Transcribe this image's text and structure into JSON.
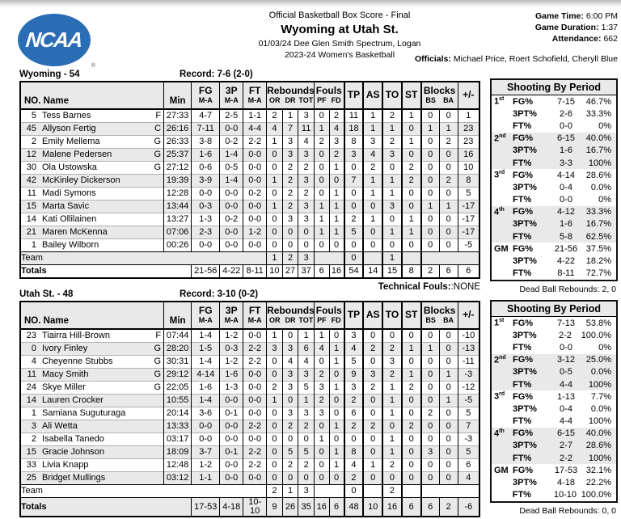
{
  "colors": {
    "ncaa_blue": "#2a6db5",
    "row_shade": "#e9e9e9"
  },
  "header": {
    "logo_text": "NCAA",
    "logo_reg": "®",
    "report_type": "Official Basketball Box Score - Final",
    "title": "Wyoming at Utah St.",
    "venue": "01/03/24 Dee Glen Smith Spectrum, Logan",
    "season": "2023-24 Women's Basketball",
    "game_time_label": "Game Time:",
    "game_time": "6:00 PM",
    "game_duration_label": "Game Duration:",
    "game_duration": "1:37",
    "attendance_label": "Attendance:",
    "attendance": "662",
    "officials_label": "Officials:",
    "officials": "Michael Price, Roert Schofield, Cheryll Blue"
  },
  "columns": {
    "name": "NO. Name",
    "min": "Min",
    "fg": "FG",
    "p3": "3P",
    "ft": "FT",
    "ma": "M-A",
    "reb": "Rebounds",
    "or": "OR",
    "dr": "DR",
    "tot": "TOT",
    "fouls": "Fouls",
    "pf": "PF",
    "fd": "FD",
    "tp": "TP",
    "as": "AS",
    "to": "TO",
    "st": "ST",
    "blocks": "Blocks",
    "bs": "BS",
    "ba": "BA",
    "pm": "+/-"
  },
  "labels": {
    "team_row": "Team",
    "totals_row": "Totals",
    "technical_fouls_label": "Technical Fouls:",
    "technical_fouls_value": ":NONE",
    "shooting_title": "Shooting By Period"
  },
  "teams": [
    {
      "title": "Wyoming - 54",
      "record": "Record: 7-6 (2-0)",
      "players": [
        {
          "no": "5",
          "name": "Tess Barnes",
          "pos": "F",
          "min": "27:33",
          "fg": "4-7",
          "p3": "2-5",
          "ft": "1-1",
          "or": "2",
          "dr": "1",
          "tot": "3",
          "pf": "0",
          "fd": "2",
          "tp": "11",
          "as": "1",
          "to": "2",
          "st": "1",
          "bs": "0",
          "ba": "0",
          "pm": "1"
        },
        {
          "no": "45",
          "name": "Allyson Fertig",
          "pos": "C",
          "min": "26:16",
          "fg": "7-11",
          "p3": "0-0",
          "ft": "4-4",
          "or": "4",
          "dr": "7",
          "tot": "11",
          "pf": "1",
          "fd": "4",
          "tp": "18",
          "as": "1",
          "to": "1",
          "st": "0",
          "bs": "1",
          "ba": "1",
          "pm": "23"
        },
        {
          "no": "2",
          "name": "Emily Mellema",
          "pos": "G",
          "min": "26:33",
          "fg": "3-8",
          "p3": "0-2",
          "ft": "2-2",
          "or": "1",
          "dr": "3",
          "tot": "4",
          "pf": "2",
          "fd": "3",
          "tp": "8",
          "as": "3",
          "to": "2",
          "st": "1",
          "bs": "0",
          "ba": "2",
          "pm": "23"
        },
        {
          "no": "12",
          "name": "Malene Pedersen",
          "pos": "G",
          "min": "25:37",
          "fg": "1-6",
          "p3": "1-4",
          "ft": "0-0",
          "or": "0",
          "dr": "3",
          "tot": "3",
          "pf": "0",
          "fd": "2",
          "tp": "3",
          "as": "4",
          "to": "3",
          "st": "0",
          "bs": "0",
          "ba": "0",
          "pm": "16"
        },
        {
          "no": "30",
          "name": "Ola Ustowska",
          "pos": "G",
          "min": "27:12",
          "fg": "0-6",
          "p3": "0-5",
          "ft": "0-0",
          "or": "0",
          "dr": "2",
          "tot": "2",
          "pf": "0",
          "fd": "1",
          "tp": "0",
          "as": "2",
          "to": "0",
          "st": "2",
          "bs": "0",
          "ba": "0",
          "pm": "10"
        },
        {
          "no": "42",
          "name": "McKinley Dickerson",
          "pos": "",
          "min": "19:39",
          "fg": "3-9",
          "p3": "1-4",
          "ft": "0-0",
          "or": "1",
          "dr": "2",
          "tot": "3",
          "pf": "0",
          "fd": "0",
          "tp": "7",
          "as": "1",
          "to": "1",
          "st": "2",
          "bs": "0",
          "ba": "2",
          "pm": "8"
        },
        {
          "no": "11",
          "name": "Madi Symons",
          "pos": "",
          "min": "12:28",
          "fg": "0-0",
          "p3": "0-0",
          "ft": "0-2",
          "or": "0",
          "dr": "2",
          "tot": "2",
          "pf": "0",
          "fd": "1",
          "tp": "0",
          "as": "1",
          "to": "1",
          "st": "0",
          "bs": "0",
          "ba": "0",
          "pm": "5"
        },
        {
          "no": "15",
          "name": "Marta Savic",
          "pos": "",
          "min": "13:44",
          "fg": "0-3",
          "p3": "0-0",
          "ft": "0-0",
          "or": "1",
          "dr": "2",
          "tot": "3",
          "pf": "1",
          "fd": "1",
          "tp": "0",
          "as": "0",
          "to": "3",
          "st": "0",
          "bs": "1",
          "ba": "1",
          "pm": "-17"
        },
        {
          "no": "14",
          "name": "Kati Ollilainen",
          "pos": "",
          "min": "13:27",
          "fg": "1-3",
          "p3": "0-2",
          "ft": "0-0",
          "or": "0",
          "dr": "3",
          "tot": "3",
          "pf": "1",
          "fd": "1",
          "tp": "2",
          "as": "1",
          "to": "0",
          "st": "1",
          "bs": "0",
          "ba": "0",
          "pm": "-17"
        },
        {
          "no": "21",
          "name": "Maren McKenna",
          "pos": "",
          "min": "07:06",
          "fg": "2-3",
          "p3": "0-0",
          "ft": "1-2",
          "or": "0",
          "dr": "0",
          "tot": "0",
          "pf": "1",
          "fd": "1",
          "tp": "5",
          "as": "0",
          "to": "1",
          "st": "1",
          "bs": "0",
          "ba": "0",
          "pm": "-17"
        },
        {
          "no": "1",
          "name": "Bailey Wilborn",
          "pos": "",
          "min": "00:26",
          "fg": "0-0",
          "p3": "0-0",
          "ft": "0-0",
          "or": "0",
          "dr": "0",
          "tot": "0",
          "pf": "0",
          "fd": "0",
          "tp": "0",
          "as": "0",
          "to": "0",
          "st": "0",
          "bs": "0",
          "ba": "0",
          "pm": "-5"
        }
      ],
      "team_row": {
        "or": "1",
        "dr": "2",
        "tot": "3",
        "tp": "0",
        "to": "1"
      },
      "totals": {
        "fg": "21-56",
        "p3": "4-22",
        "ft": "8-11",
        "or": "10",
        "dr": "27",
        "tot": "37",
        "pf": "6",
        "fd": "16",
        "tp": "54",
        "as": "14",
        "to": "15",
        "st": "8",
        "bs": "2",
        "ba": "6",
        "pm": "6"
      },
      "shooting": [
        {
          "num": "1",
          "sup": "st",
          "rows": [
            [
              "FG%",
              "7-15",
              "46.7%"
            ],
            [
              "3PT%",
              "2-6",
              "33.3%"
            ],
            [
              "FT%",
              "0-0",
              "0%"
            ]
          ]
        },
        {
          "num": "2",
          "sup": "nd",
          "rows": [
            [
              "FG%",
              "6-15",
              "40.0%"
            ],
            [
              "3PT%",
              "1-6",
              "16.7%"
            ],
            [
              "FT%",
              "3-3",
              "100%"
            ]
          ]
        },
        {
          "num": "3",
          "sup": "rd",
          "rows": [
            [
              "FG%",
              "4-14",
              "28.6%"
            ],
            [
              "3PT%",
              "0-4",
              "0.0%"
            ],
            [
              "FT%",
              "0-0",
              "0%"
            ]
          ]
        },
        {
          "num": "4",
          "sup": "th",
          "rows": [
            [
              "FG%",
              "4-12",
              "33.3%"
            ],
            [
              "3PT%",
              "1-6",
              "16.7%"
            ],
            [
              "FT%",
              "5-8",
              "62.5%"
            ]
          ]
        },
        {
          "num": "GM",
          "sup": "",
          "rows": [
            [
              "FG%",
              "21-56",
              "37.5%"
            ],
            [
              "3PT%",
              "4-22",
              "18.2%"
            ],
            [
              "FT%",
              "8-11",
              "72.7%"
            ]
          ]
        }
      ],
      "dead_ball": "Dead Ball Rebounds: 2, 0"
    },
    {
      "title": "Utah St. - 48",
      "record": "Record: 3-10 (0-2)",
      "players": [
        {
          "no": "23",
          "name": "Tiairra Hill-Brown",
          "pos": "F",
          "min": "07:44",
          "fg": "1-4",
          "p3": "1-2",
          "ft": "0-0",
          "or": "1",
          "dr": "0",
          "tot": "1",
          "pf": "1",
          "fd": "0",
          "tp": "3",
          "as": "0",
          "to": "0",
          "st": "0",
          "bs": "0",
          "ba": "0",
          "pm": "-10"
        },
        {
          "no": "0",
          "name": "Ivory Finley",
          "pos": "G",
          "min": "28:20",
          "fg": "1-5",
          "p3": "0-3",
          "ft": "2-2",
          "or": "3",
          "dr": "3",
          "tot": "6",
          "pf": "4",
          "fd": "1",
          "tp": "4",
          "as": "2",
          "to": "2",
          "st": "1",
          "bs": "1",
          "ba": "0",
          "pm": "-13"
        },
        {
          "no": "4",
          "name": "Cheyenne Stubbs",
          "pos": "G",
          "min": "30:31",
          "fg": "1-4",
          "p3": "1-2",
          "ft": "2-2",
          "or": "0",
          "dr": "4",
          "tot": "4",
          "pf": "0",
          "fd": "1",
          "tp": "5",
          "as": "0",
          "to": "3",
          "st": "0",
          "bs": "0",
          "ba": "0",
          "pm": "-11"
        },
        {
          "no": "11",
          "name": "Macy Smith",
          "pos": "G",
          "min": "29:12",
          "fg": "4-14",
          "p3": "1-6",
          "ft": "0-0",
          "or": "0",
          "dr": "3",
          "tot": "3",
          "pf": "2",
          "fd": "0",
          "tp": "9",
          "as": "3",
          "to": "2",
          "st": "1",
          "bs": "0",
          "ba": "1",
          "pm": "-3"
        },
        {
          "no": "24",
          "name": "Skye Miller",
          "pos": "G",
          "min": "22:05",
          "fg": "1-6",
          "p3": "1-3",
          "ft": "0-0",
          "or": "2",
          "dr": "3",
          "tot": "5",
          "pf": "3",
          "fd": "1",
          "tp": "3",
          "as": "2",
          "to": "1",
          "st": "2",
          "bs": "0",
          "ba": "0",
          "pm": "-12"
        },
        {
          "no": "14",
          "name": "Lauren Crocker",
          "pos": "",
          "min": "10:55",
          "fg": "1-4",
          "p3": "0-0",
          "ft": "0-0",
          "or": "1",
          "dr": "0",
          "tot": "1",
          "pf": "2",
          "fd": "0",
          "tp": "2",
          "as": "0",
          "to": "1",
          "st": "0",
          "bs": "0",
          "ba": "1",
          "pm": "-5"
        },
        {
          "no": "1",
          "name": "Samiana Suguturaga",
          "pos": "",
          "min": "20:14",
          "fg": "3-6",
          "p3": "0-1",
          "ft": "0-0",
          "or": "0",
          "dr": "3",
          "tot": "3",
          "pf": "3",
          "fd": "0",
          "tp": "6",
          "as": "0",
          "to": "1",
          "st": "0",
          "bs": "2",
          "ba": "0",
          "pm": "5"
        },
        {
          "no": "3",
          "name": "Ali Wetta",
          "pos": "",
          "min": "13:33",
          "fg": "0-0",
          "p3": "0-0",
          "ft": "2-2",
          "or": "0",
          "dr": "2",
          "tot": "2",
          "pf": "0",
          "fd": "1",
          "tp": "2",
          "as": "2",
          "to": "0",
          "st": "2",
          "bs": "0",
          "ba": "0",
          "pm": "7"
        },
        {
          "no": "2",
          "name": "Isabella Tanedo",
          "pos": "",
          "min": "03:17",
          "fg": "0-0",
          "p3": "0-0",
          "ft": "0-0",
          "or": "0",
          "dr": "0",
          "tot": "0",
          "pf": "1",
          "fd": "0",
          "tp": "0",
          "as": "0",
          "to": "1",
          "st": "0",
          "bs": "0",
          "ba": "0",
          "pm": "-3"
        },
        {
          "no": "15",
          "name": "Gracie Johnson",
          "pos": "",
          "min": "18:09",
          "fg": "3-7",
          "p3": "0-1",
          "ft": "2-2",
          "or": "0",
          "dr": "5",
          "tot": "5",
          "pf": "0",
          "fd": "1",
          "tp": "8",
          "as": "0",
          "to": "1",
          "st": "0",
          "bs": "3",
          "ba": "0",
          "pm": "5"
        },
        {
          "no": "33",
          "name": "Livia Knapp",
          "pos": "",
          "min": "12:48",
          "fg": "1-2",
          "p3": "0-0",
          "ft": "2-2",
          "or": "0",
          "dr": "2",
          "tot": "2",
          "pf": "0",
          "fd": "1",
          "tp": "4",
          "as": "1",
          "to": "2",
          "st": "0",
          "bs": "0",
          "ba": "0",
          "pm": "6"
        },
        {
          "no": "25",
          "name": "Bridget Mullings",
          "pos": "",
          "min": "03:12",
          "fg": "1-1",
          "p3": "0-0",
          "ft": "0-0",
          "or": "0",
          "dr": "0",
          "tot": "0",
          "pf": "0",
          "fd": "0",
          "tp": "2",
          "as": "0",
          "to": "0",
          "st": "0",
          "bs": "0",
          "ba": "0",
          "pm": "4"
        }
      ],
      "team_row": {
        "or": "2",
        "dr": "1",
        "tot": "3",
        "tp": "0",
        "to": "2"
      },
      "totals": {
        "fg": "17-53",
        "p3": "4-18",
        "ft": "10-10",
        "or": "9",
        "dr": "26",
        "tot": "35",
        "pf": "16",
        "fd": "6",
        "tp": "48",
        "as": "10",
        "to": "16",
        "st": "6",
        "bs": "6",
        "ba": "2",
        "pm": "-6"
      },
      "shooting": [
        {
          "num": "1",
          "sup": "st",
          "rows": [
            [
              "FG%",
              "7-13",
              "53.8%"
            ],
            [
              "3PT%",
              "2-2",
              "100.0%"
            ],
            [
              "FT%",
              "0-0",
              "0%"
            ]
          ]
        },
        {
          "num": "2",
          "sup": "nd",
          "rows": [
            [
              "FG%",
              "3-12",
              "25.0%"
            ],
            [
              "3PT%",
              "0-5",
              "0.0%"
            ],
            [
              "FT%",
              "4-4",
              "100%"
            ]
          ]
        },
        {
          "num": "3",
          "sup": "rd",
          "rows": [
            [
              "FG%",
              "1-13",
              "7.7%"
            ],
            [
              "3PT%",
              "0-4",
              "0.0%"
            ],
            [
              "FT%",
              "4-4",
              "100%"
            ]
          ]
        },
        {
          "num": "4",
          "sup": "th",
          "rows": [
            [
              "FG%",
              "6-15",
              "40.0%"
            ],
            [
              "3PT%",
              "2-7",
              "28.6%"
            ],
            [
              "FT%",
              "2-2",
              "100%"
            ]
          ]
        },
        {
          "num": "GM",
          "sup": "",
          "rows": [
            [
              "FG%",
              "17-53",
              "32.1%"
            ],
            [
              "3PT%",
              "4-18",
              "22.2%"
            ],
            [
              "FT%",
              "10-10",
              "100.0%"
            ]
          ]
        }
      ],
      "dead_ball": "Dead Ball Rebounds: 0, 0"
    }
  ]
}
